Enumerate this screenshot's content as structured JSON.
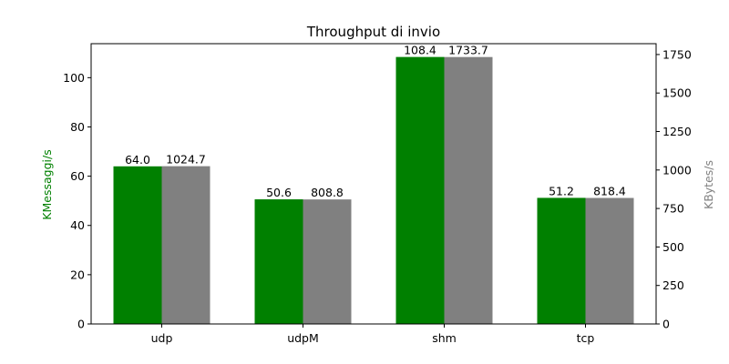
{
  "chart_data": {
    "type": "bar",
    "title": "Throughput di invio",
    "categories": [
      "udp",
      "udpM",
      "shm",
      "tcp"
    ],
    "series": [
      {
        "name": "",
        "axis": "left",
        "color": "#008000",
        "values": [
          64.0,
          50.6,
          108.4,
          51.2
        ],
        "labels": [
          "64.0",
          "50.6",
          "108.4",
          "51.2"
        ]
      },
      {
        "name": "",
        "axis": "right",
        "color": "#808080",
        "values": [
          1024.7,
          808.8,
          1733.7,
          818.4
        ],
        "labels": [
          "1024.7",
          "808.8",
          "1733.7",
          "818.4"
        ]
      }
    ],
    "y_left": {
      "label": "KMessaggi/s",
      "label_color": "#008000",
      "range": [
        0,
        113.8
      ],
      "ticks": [
        0,
        20,
        40,
        60,
        80,
        100
      ]
    },
    "y_right": {
      "label": "KBytes/s",
      "label_color": "#808080",
      "range": [
        0,
        1820.4
      ],
      "ticks": [
        0,
        250,
        500,
        750,
        1000,
        1250,
        1500,
        1750
      ]
    },
    "grid": false,
    "legend": "none"
  }
}
